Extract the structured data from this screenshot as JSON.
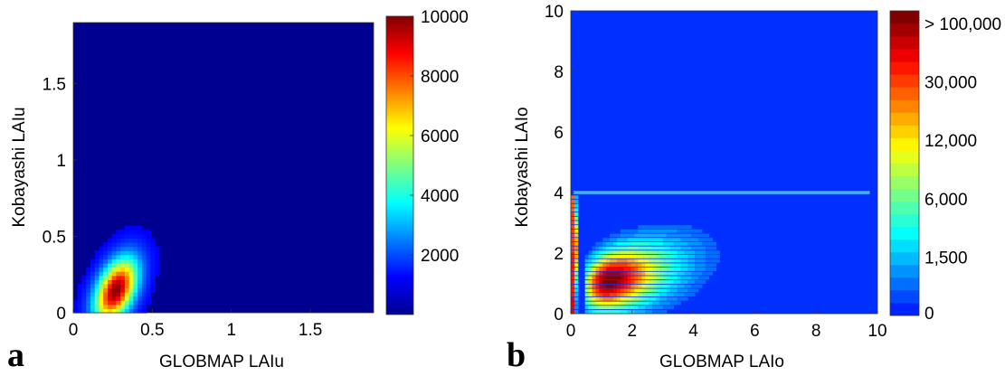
{
  "chart_data": [
    {
      "panel": "a",
      "type": "heatmap",
      "xlabel": "GLOBMAP LAIu",
      "ylabel": "Kobayashi LAIu",
      "xlim": [
        0,
        1.9
      ],
      "ylim": [
        0,
        1.9
      ],
      "xticks": [
        "0",
        "0.5",
        "1",
        "1.5"
      ],
      "yticks": [
        "0",
        "0.5",
        "1",
        "1.5"
      ],
      "background_value": 0,
      "density_peak": {
        "x": 0.27,
        "y": 0.15,
        "count": 10000
      },
      "density_spread": {
        "sx": 0.09,
        "sy": 0.14,
        "correlation": 0.45
      },
      "colorbar": {
        "colormap": "jet",
        "range": [
          0,
          10000
        ],
        "ticks": [
          "2000",
          "4000",
          "6000",
          "8000",
          "10000"
        ]
      }
    },
    {
      "panel": "b",
      "type": "heatmap",
      "xlabel": "GLOBMAP LAIo",
      "ylabel": "Kobayashi LAIo",
      "xlim": [
        0,
        10
      ],
      "ylim": [
        0,
        10
      ],
      "xticks": [
        "0",
        "2",
        "4",
        "6",
        "8",
        "10"
      ],
      "yticks": [
        "0",
        "2",
        "4",
        "6",
        "8",
        "10"
      ],
      "saturation_line_y": 4,
      "density_peak": {
        "x": 1.3,
        "y": 1.6,
        "count": 100000
      },
      "colorbar": {
        "colormap": "jet-discrete",
        "levels": 24,
        "ticks": [
          "0",
          "1,500",
          "6,000",
          "12,000",
          "30,000",
          "> 100,000"
        ]
      }
    }
  ],
  "panel_labels": [
    "a",
    "b"
  ]
}
